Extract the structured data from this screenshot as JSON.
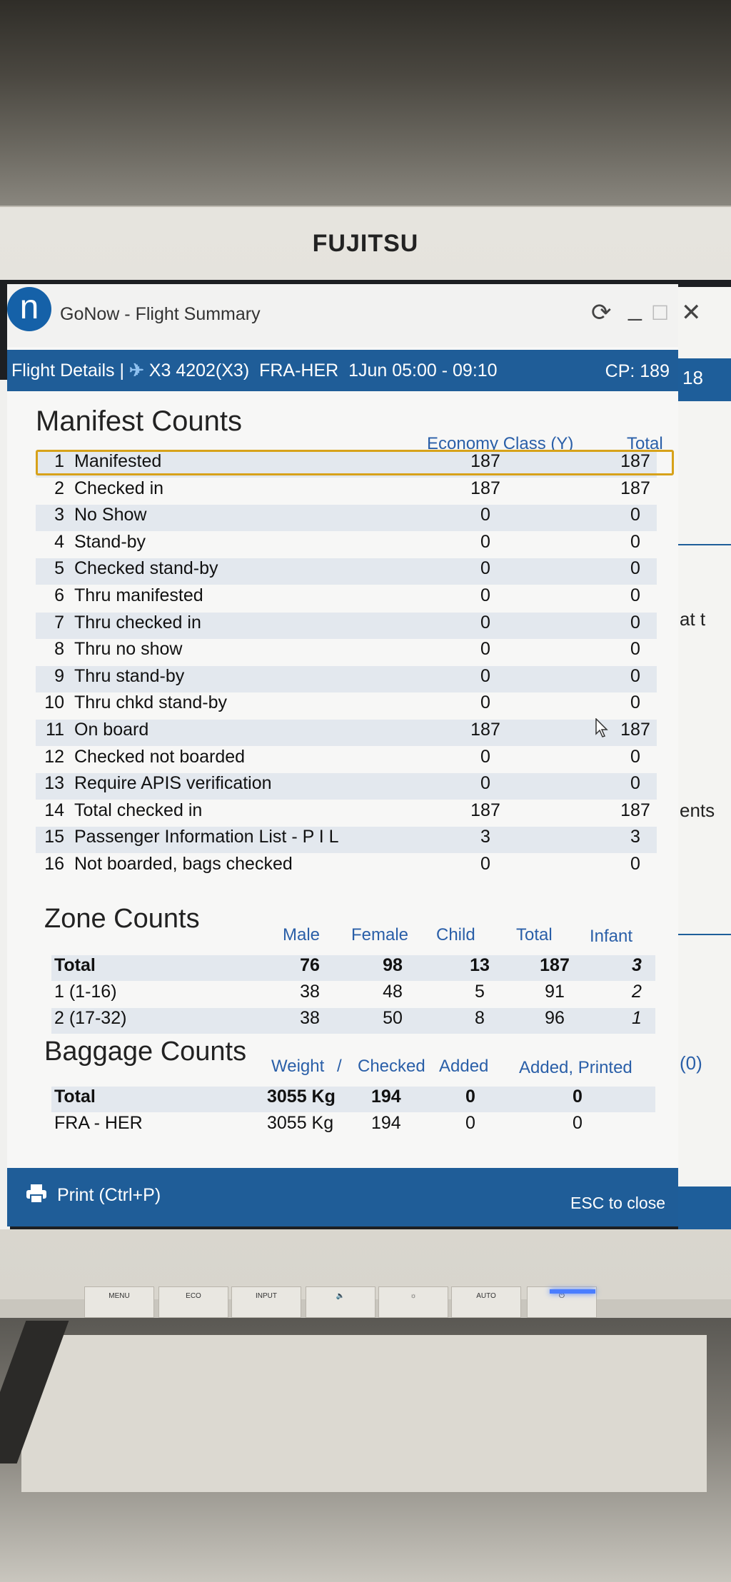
{
  "monitor": {
    "brand": "FUJITSU",
    "buttons": [
      "MENU",
      "ECO",
      "INPUT",
      "🔈",
      "☼",
      "AUTO",
      "⏻"
    ]
  },
  "window": {
    "logo_letter": "n",
    "title": "GoNow - Flight Summary",
    "controls": {
      "refresh": "⟳",
      "minimize": "_",
      "maximize": "☐",
      "close": "✕"
    }
  },
  "header": {
    "label": "Flight Details |",
    "flight": "X3 4202(X3)",
    "route": "FRA-HER",
    "time": "1Jun 05:00 - 09:10",
    "cp": "CP: 189"
  },
  "manifest": {
    "title": "Manifest Counts",
    "col_economy": "Economy Class (Y)",
    "col_total": "Total",
    "rows": [
      {
        "n": "1",
        "label": "Manifested",
        "economy": "187",
        "total": "187"
      },
      {
        "n": "2",
        "label": "Checked in",
        "economy": "187",
        "total": "187"
      },
      {
        "n": "3",
        "label": "No Show",
        "economy": "0",
        "total": "0"
      },
      {
        "n": "4",
        "label": "Stand-by",
        "economy": "0",
        "total": "0"
      },
      {
        "n": "5",
        "label": "Checked stand-by",
        "economy": "0",
        "total": "0"
      },
      {
        "n": "6",
        "label": "Thru manifested",
        "economy": "0",
        "total": "0"
      },
      {
        "n": "7",
        "label": "Thru checked in",
        "economy": "0",
        "total": "0"
      },
      {
        "n": "8",
        "label": "Thru no show",
        "economy": "0",
        "total": "0"
      },
      {
        "n": "9",
        "label": "Thru stand-by",
        "economy": "0",
        "total": "0"
      },
      {
        "n": "10",
        "label": "Thru chkd stand-by",
        "economy": "0",
        "total": "0"
      },
      {
        "n": "11",
        "label": "On board",
        "economy": "187",
        "total": "187"
      },
      {
        "n": "12",
        "label": "Checked not boarded",
        "economy": "0",
        "total": "0"
      },
      {
        "n": "13",
        "label": "Require APIS verification",
        "economy": "0",
        "total": "0"
      },
      {
        "n": "14",
        "label": "Total checked in",
        "economy": "187",
        "total": "187"
      },
      {
        "n": "15",
        "label": "Passenger Information List - P I L",
        "economy": "3",
        "total": "3"
      },
      {
        "n": "16",
        "label": "Not boarded, bags checked",
        "economy": "0",
        "total": "0"
      }
    ]
  },
  "zone": {
    "title": "Zone Counts",
    "cols": {
      "male": "Male",
      "female": "Female",
      "child": "Child",
      "total": "Total",
      "infant": "Infant"
    },
    "rows": [
      {
        "label": "Total",
        "male": "76",
        "female": "98",
        "child": "13",
        "total": "187",
        "infant": "3"
      },
      {
        "label": "1 (1-16)",
        "male": "38",
        "female": "48",
        "child": "5",
        "total": "91",
        "infant": "2"
      },
      {
        "label": "2 (17-32)",
        "male": "38",
        "female": "50",
        "child": "8",
        "total": "96",
        "infant": "1"
      }
    ]
  },
  "baggage": {
    "title": "Baggage Counts",
    "cols": {
      "weight": "Weight",
      "sep": "/",
      "checked": "Checked",
      "added": "Added",
      "added_printed": "Added, Printed"
    },
    "rows": [
      {
        "label": "Total",
        "weight": "3055 Kg",
        "checked": "194",
        "added": "0",
        "added_printed": "0"
      },
      {
        "label": "FRA - HER",
        "weight": "3055 Kg",
        "checked": "194",
        "added": "0",
        "added_printed": "0"
      }
    ]
  },
  "footer": {
    "print": "Print (Ctrl+P)",
    "esc": "ESC to close"
  },
  "background_app": {
    "header_text": "18",
    "fragments": [
      "at t",
      "ents",
      "(0)"
    ]
  }
}
